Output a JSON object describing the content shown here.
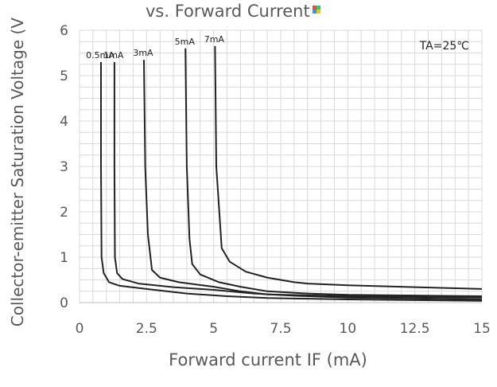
{
  "chart_data": {
    "type": "line",
    "title": "vs. Forward Current",
    "xlabel": "Forward current IF (mA)",
    "ylabel": "Collector-emitter Saturation Voltage (V",
    "annotation": "TA=25℃",
    "xlim": [
      0,
      15
    ],
    "ylim": [
      0,
      6
    ],
    "x_ticks": [
      "0",
      "2.5",
      "5",
      "7.5",
      "10",
      "12.5",
      "15"
    ],
    "y_ticks": [
      "0",
      "1",
      "2",
      "3",
      "4",
      "5",
      "6"
    ],
    "grid": true,
    "colors": {
      "line": "#222222",
      "grid": "#d9d9d9",
      "axis_text": "#595959"
    },
    "series": [
      {
        "name": "0.5mA",
        "points": [
          [
            0.8,
            5.3
          ],
          [
            0.8,
            3.0
          ],
          [
            0.82,
            1.0
          ],
          [
            0.9,
            0.65
          ],
          [
            1.1,
            0.45
          ],
          [
            1.5,
            0.37
          ],
          [
            2.5,
            0.3
          ],
          [
            4.0,
            0.2
          ],
          [
            5.5,
            0.14
          ],
          [
            7.0,
            0.1
          ],
          [
            10.0,
            0.07
          ],
          [
            15.0,
            0.04
          ]
        ]
      },
      {
        "name": "1mA",
        "points": [
          [
            1.3,
            5.3
          ],
          [
            1.3,
            3.0
          ],
          [
            1.32,
            1.0
          ],
          [
            1.4,
            0.65
          ],
          [
            1.6,
            0.52
          ],
          [
            2.2,
            0.42
          ],
          [
            3.5,
            0.34
          ],
          [
            5.0,
            0.28
          ],
          [
            6.5,
            0.2
          ],
          [
            8.0,
            0.15
          ],
          [
            10.0,
            0.11
          ],
          [
            15.0,
            0.07
          ]
        ]
      },
      {
        "name": "3mA",
        "points": [
          [
            2.4,
            5.35
          ],
          [
            2.45,
            3.0
          ],
          [
            2.55,
            1.5
          ],
          [
            2.7,
            0.72
          ],
          [
            3.0,
            0.55
          ],
          [
            3.7,
            0.45
          ],
          [
            5.0,
            0.35
          ],
          [
            6.0,
            0.25
          ],
          [
            7.0,
            0.18
          ],
          [
            10.0,
            0.14
          ],
          [
            15.0,
            0.11
          ]
        ]
      },
      {
        "name": "5mA",
        "points": [
          [
            3.95,
            5.6
          ],
          [
            4.0,
            3.0
          ],
          [
            4.1,
            1.4
          ],
          [
            4.2,
            0.85
          ],
          [
            4.5,
            0.62
          ],
          [
            5.2,
            0.45
          ],
          [
            6.0,
            0.35
          ],
          [
            7.0,
            0.25
          ],
          [
            8.5,
            0.2
          ],
          [
            10.0,
            0.17
          ],
          [
            15.0,
            0.14
          ]
        ]
      },
      {
        "name": "7mA",
        "points": [
          [
            5.05,
            5.65
          ],
          [
            5.1,
            3.0
          ],
          [
            5.3,
            1.2
          ],
          [
            5.6,
            0.9
          ],
          [
            6.2,
            0.68
          ],
          [
            7.0,
            0.55
          ],
          [
            8.0,
            0.45
          ],
          [
            8.5,
            0.42
          ],
          [
            10.0,
            0.38
          ],
          [
            15.0,
            0.3
          ]
        ]
      }
    ]
  }
}
